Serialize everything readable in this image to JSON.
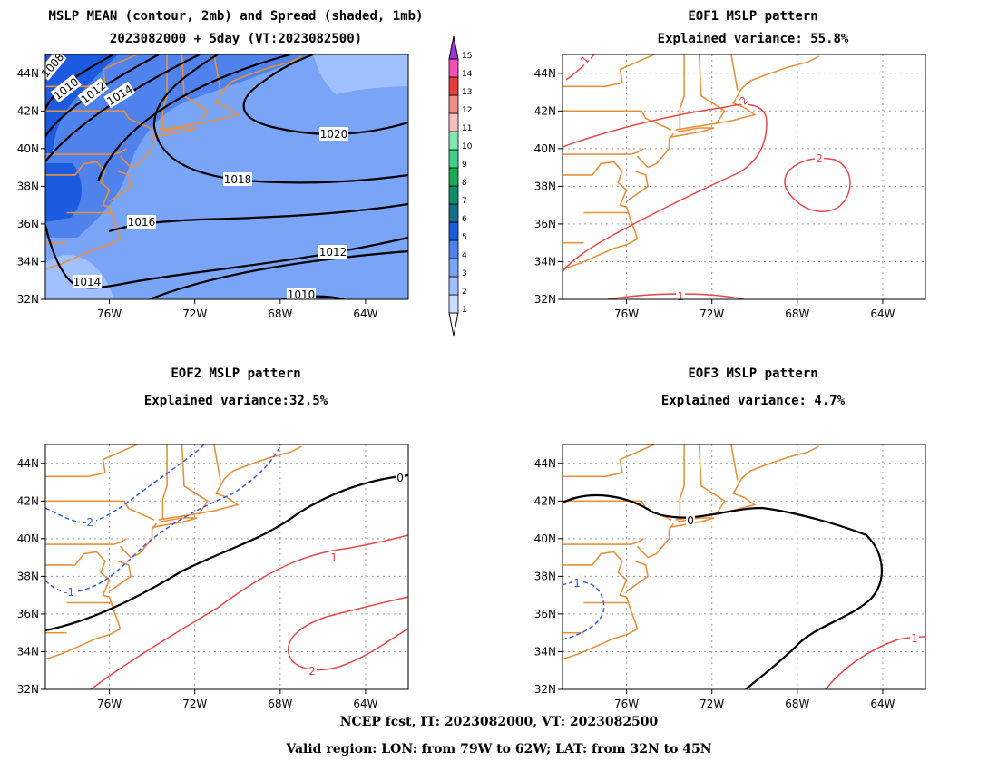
{
  "panels": {
    "mean_spread": {
      "title_line1": "MSLP MEAN (contour, 2mb) and Spread (shaded, 1mb)",
      "title_line2": "2023082000 + 5day (VT:2023082500)"
    },
    "eof1": {
      "title_line1": "EOF1 MSLP pattern",
      "title_line2": "Explained variance: 55.8%"
    },
    "eof2": {
      "title_line1": "EOF2 MSLP pattern",
      "title_line2": "Explained variance:32.5%"
    },
    "eof3": {
      "title_line1": "EOF3 MSLP pattern",
      "title_line2": "Explained variance: 4.7%"
    }
  },
  "footer": {
    "line1": "NCEP fcst, IT: 2023082000, VT: 2023082500",
    "line2": "Valid region: LON: from 79W to 62W; LAT: from 32N to 45N"
  },
  "colors": {
    "coast": "#e8903c",
    "positive": "#e8474a",
    "negative": "#3a5fe0",
    "zero": "#000000",
    "grid": "#a0a0a0"
  },
  "chart_data": [
    {
      "type": "heatmap",
      "name": "mean_spread",
      "title": "MSLP MEAN (contour, 2mb) and Spread (shaded, 1mb)",
      "subtitle": "2023082000 + 5day (VT:2023082500)",
      "xlim": [
        -79,
        -62
      ],
      "ylim": [
        32,
        45
      ],
      "x_ticks": [
        -76,
        -72,
        -68,
        -64
      ],
      "x_tick_labels": [
        "76W",
        "72W",
        "68W",
        "64W"
      ],
      "y_ticks": [
        32,
        34,
        36,
        38,
        40,
        42,
        44
      ],
      "y_tick_labels": [
        "32N",
        "34N",
        "36N",
        "38N",
        "40N",
        "42N",
        "44N"
      ],
      "grid": false,
      "colorbar": {
        "levels": [
          1,
          2,
          3,
          4,
          5,
          6,
          7,
          8,
          9,
          10,
          11,
          12,
          13,
          14,
          15
        ],
        "colors": [
          "#c8dcff",
          "#a0c0ff",
          "#7aa4f6",
          "#4f82ec",
          "#1c5ae0",
          "#146e8c",
          "#0f8a6a",
          "#1aa850",
          "#40d088",
          "#80e8b0",
          "#f4c0bc",
          "#ee8c88",
          "#e63c3c",
          "#f050b4",
          "#a032e0"
        ]
      },
      "mean_contours": [
        {
          "value": 1008,
          "label": "1008"
        },
        {
          "value": 1010,
          "label": "1010"
        },
        {
          "value": 1012,
          "label": "1012"
        },
        {
          "value": 1014,
          "label": "1014"
        },
        {
          "value": 1016,
          "label": "1016"
        },
        {
          "value": 1018,
          "label": "1018"
        },
        {
          "value": 1020,
          "label": "1020"
        }
      ]
    },
    {
      "type": "heatmap",
      "name": "eof1",
      "title": "EOF1 MSLP pattern",
      "subtitle": "Explained variance: 55.8%",
      "explained_variance_pct": 55.8,
      "xlim": [
        -79,
        -62
      ],
      "ylim": [
        32,
        45
      ],
      "x_tick_labels": [
        "76W",
        "72W",
        "68W",
        "64W"
      ],
      "y_tick_labels": [
        "32N",
        "34N",
        "36N",
        "38N",
        "40N",
        "42N",
        "44N"
      ],
      "grid": true,
      "contour_levels": [
        1,
        2
      ]
    },
    {
      "type": "heatmap",
      "name": "eof2",
      "title": "EOF2 MSLP pattern",
      "subtitle": "Explained variance:32.5%",
      "explained_variance_pct": 32.5,
      "xlim": [
        -79,
        -62
      ],
      "ylim": [
        32,
        45
      ],
      "x_tick_labels": [
        "76W",
        "72W",
        "68W",
        "64W"
      ],
      "y_tick_labels": [
        "32N",
        "34N",
        "36N",
        "38N",
        "40N",
        "42N",
        "44N"
      ],
      "grid": true,
      "contour_levels": [
        -2,
        -1,
        0,
        1,
        2
      ]
    },
    {
      "type": "heatmap",
      "name": "eof3",
      "title": "EOF3 MSLP pattern",
      "subtitle": "Explained variance: 4.7%",
      "explained_variance_pct": 4.7,
      "xlim": [
        -79,
        -62
      ],
      "ylim": [
        32,
        45
      ],
      "x_tick_labels": [
        "76W",
        "72W",
        "68W",
        "64W"
      ],
      "y_tick_labels": [
        "32N",
        "34N",
        "36N",
        "38N",
        "40N",
        "42N",
        "44N"
      ],
      "grid": true,
      "contour_levels": [
        -1,
        0,
        1
      ]
    }
  ]
}
